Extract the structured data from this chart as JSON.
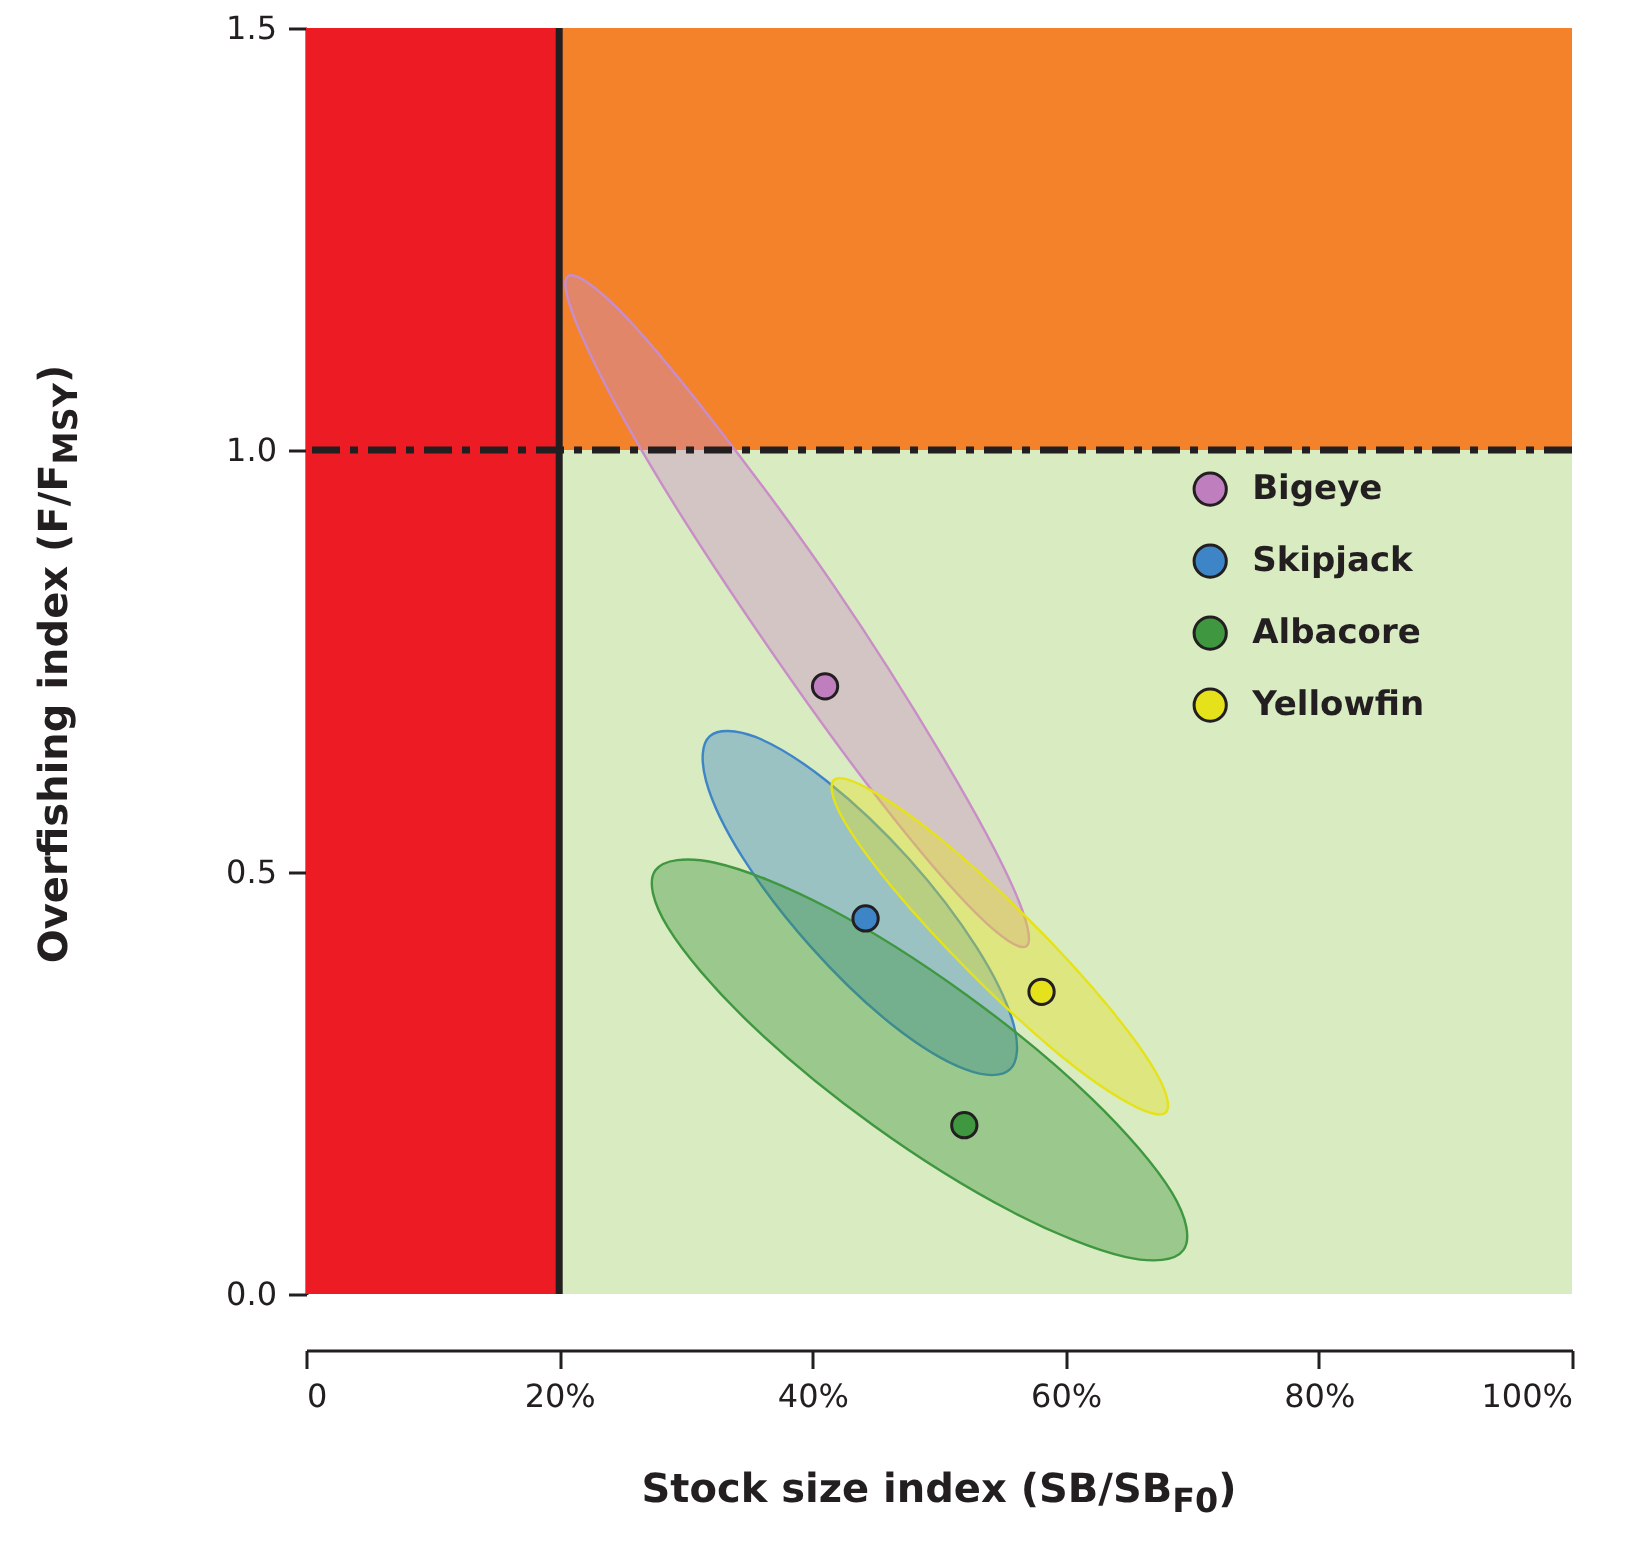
{
  "chart_data": {
    "type": "scatter",
    "xlabel": "Stock size index (SB/SB$_{F0}$)",
    "ylabel": "Overfishing index (F/F$_{MSY}$)",
    "xlim": [
      0,
      100
    ],
    "ylim": [
      0,
      1.5
    ],
    "xticks": [
      0,
      {
        "value": 20,
        "label": "20%"
      },
      {
        "value": 40,
        "label": "40%"
      },
      {
        "value": 60,
        "label": "60%"
      },
      {
        "value": 80,
        "label": "80%"
      },
      {
        "value": 100,
        "label": "100%"
      }
    ],
    "yticks": [
      {
        "value": 0,
        "label": "0.0"
      },
      {
        "value": 0.5,
        "label": "0.5"
      },
      {
        "value": 1,
        "label": "1.0"
      },
      {
        "value": 1.5,
        "label": "1.5"
      }
    ],
    "bands": [
      {
        "axis": "y",
        "from": 0,
        "to": 1,
        "color": "#d9ebc1"
      },
      {
        "axis": "y",
        "from": 1,
        "to": 1.5,
        "color": "#f3822a"
      },
      {
        "axis": "x",
        "from": 0,
        "to": 20,
        "color": "#ed1c24"
      }
    ],
    "ref_lines": [
      {
        "axis": "x",
        "value": 20,
        "color": "#231f20",
        "line_style": "solid"
      },
      {
        "axis": "y",
        "value": 1,
        "color": "#231f20",
        "line_style": "dashed"
      }
    ],
    "legend": "right",
    "series": [
      {
        "type": "area",
        "color": "#c98dc8",
        "x": [
          56.9,
          55.9,
          50.3,
          41.7,
          32.2,
          24.6,
          20.7,
          21.7,
          27.2,
          35.9,
          45.3,
          53.0
        ],
        "values": [
          0.412,
          0.48,
          0.636,
          0.839,
          1.033,
          1.168,
          1.206,
          1.138,
          0.982,
          0.78,
          0.585,
          0.45
        ]
      },
      {
        "type": "area",
        "color": "#3d85c6",
        "x": [
          55.6,
          55.9,
          53.0,
          47.6,
          41.2,
          35.5,
          31.9,
          31.6,
          34.5,
          39.9,
          46.3,
          52.1
        ],
        "values": [
          0.266,
          0.319,
          0.41,
          0.516,
          0.607,
          0.66,
          0.661,
          0.608,
          0.517,
          0.411,
          0.319,
          0.266
        ]
      },
      {
        "type": "area",
        "color": "#3f973f",
        "x": [
          69.3,
          68.4,
          62.1,
          52.2,
          41.3,
          32.3,
          27.6,
          28.6,
          34.9,
          44.8,
          55.7,
          64.7
        ],
        "values": [
          0.052,
          0.12,
          0.231,
          0.354,
          0.457,
          0.511,
          0.502,
          0.434,
          0.323,
          0.2,
          0.098,
          0.044
        ]
      },
      {
        "type": "area",
        "color": "#e5e21b",
        "x": [
          67.9,
          67.3,
          63.3,
          57.0,
          50.2,
          44.6,
          41.7,
          42.3,
          46.3,
          52.6,
          59.4,
          65.0
        ],
        "values": [
          0.215,
          0.258,
          0.342,
          0.445,
          0.538,
          0.597,
          0.609,
          0.566,
          0.482,
          0.379,
          0.285,
          0.226
        ]
      },
      {
        "name": "Bigeye",
        "marker": "circle",
        "color": "#bf7fbf",
        "x": [
          41
        ],
        "values": [
          0.72
        ]
      },
      {
        "name": "Skipjack",
        "marker": "circle",
        "color": "#3d85c6",
        "x": [
          44.2
        ],
        "values": [
          0.445
        ]
      },
      {
        "name": "Albacore",
        "marker": "circle",
        "color": "#3f973f",
        "x": [
          52
        ],
        "values": [
          0.2
        ]
      },
      {
        "name": "Yellowfin",
        "marker": "circle",
        "color": "#e5e21b",
        "x": [
          58.1
        ],
        "values": [
          0.358
        ]
      }
    ]
  }
}
